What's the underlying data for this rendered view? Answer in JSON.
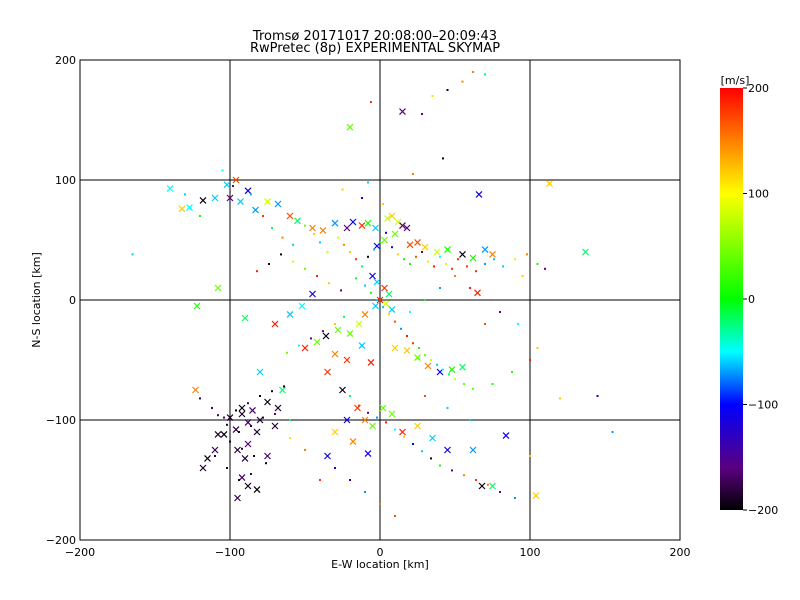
{
  "chart_data": {
    "type": "scatter",
    "title": "Tromsø 20171017 20:08:00–20:09:43",
    "subtitle": "RwPretec (8p) EXPERIMENTAL SKYMAP",
    "xlabel": "E-W location [km]",
    "ylabel": "N-S location [km]",
    "xlim": [
      -200,
      200
    ],
    "ylim": [
      -200,
      200
    ],
    "xticks": [
      "−200",
      "−100",
      "0",
      "100",
      "200"
    ],
    "yticks": [
      "−200",
      "−100",
      "0",
      "100",
      "200"
    ],
    "grid_lines": [
      -100,
      0,
      100
    ],
    "colorbar": {
      "unit": "[m/s]",
      "range": [
        -200,
        200
      ],
      "ticks": [
        "200",
        "100",
        "0",
        "−100",
        "−200"
      ]
    },
    "series": [
      {
        "marker": "x",
        "points": [
          [
            -140,
            93
          ],
          [
            -132,
            76
          ],
          [
            -127,
            77
          ],
          [
            -118,
            83
          ],
          [
            -110,
            85
          ],
          [
            -102,
            96
          ],
          [
            -96,
            100
          ],
          [
            -100,
            85
          ],
          [
            -93,
            82
          ],
          [
            -88,
            91
          ],
          [
            -83,
            75
          ],
          [
            -75,
            82
          ],
          [
            -68,
            80
          ],
          [
            -60,
            70
          ],
          [
            -55,
            66
          ],
          [
            -45,
            60
          ],
          [
            -38,
            58
          ],
          [
            -30,
            64
          ],
          [
            -22,
            60
          ],
          [
            -18,
            65
          ],
          [
            -12,
            62
          ],
          [
            -8,
            64
          ],
          [
            -3,
            60
          ],
          [
            5,
            68
          ],
          [
            8,
            70
          ],
          [
            12,
            65
          ],
          [
            15,
            62
          ],
          [
            18,
            60
          ],
          [
            10,
            55
          ],
          [
            3,
            50
          ],
          [
            -2,
            45
          ],
          [
            20,
            46
          ],
          [
            25,
            48
          ],
          [
            30,
            44
          ],
          [
            38,
            40
          ],
          [
            45,
            42
          ],
          [
            55,
            38
          ],
          [
            62,
            35
          ],
          [
            70,
            42
          ],
          [
            75,
            38
          ],
          [
            -20,
            144
          ],
          [
            15,
            157
          ],
          [
            66,
            88
          ],
          [
            113,
            97
          ],
          [
            137,
            40
          ],
          [
            -5,
            20
          ],
          [
            -2,
            15
          ],
          [
            3,
            10
          ],
          [
            6,
            5
          ],
          [
            0,
            0
          ],
          [
            -3,
            -5
          ],
          [
            4,
            -3
          ],
          [
            8,
            -8
          ],
          [
            -10,
            -12
          ],
          [
            -14,
            -20
          ],
          [
            -20,
            -28
          ],
          [
            -28,
            -25
          ],
          [
            -36,
            -30
          ],
          [
            -42,
            -35
          ],
          [
            -50,
            -40
          ],
          [
            -30,
            -45
          ],
          [
            -22,
            -50
          ],
          [
            -12,
            -38
          ],
          [
            -6,
            -52
          ],
          [
            10,
            -40
          ],
          [
            18,
            -42
          ],
          [
            25,
            -48
          ],
          [
            32,
            -55
          ],
          [
            40,
            -60
          ],
          [
            48,
            -58
          ],
          [
            55,
            -56
          ],
          [
            -45,
            5
          ],
          [
            -52,
            -5
          ],
          [
            -60,
            -12
          ],
          [
            -70,
            -20
          ],
          [
            -90,
            -15
          ],
          [
            -108,
            10
          ],
          [
            -122,
            -5
          ],
          [
            -92,
            -95
          ],
          [
            -88,
            -102
          ],
          [
            -96,
            -108
          ],
          [
            -104,
            -112
          ],
          [
            -85,
            -92
          ],
          [
            -80,
            -100
          ],
          [
            -92,
            -90
          ],
          [
            -100,
            -98
          ],
          [
            -88,
            -120
          ],
          [
            -95,
            -125
          ],
          [
            -82,
            -110
          ],
          [
            -110,
            -125
          ],
          [
            -115,
            -132
          ],
          [
            -118,
            -140
          ],
          [
            -92,
            -148
          ],
          [
            -88,
            -155
          ],
          [
            -82,
            -158
          ],
          [
            -95,
            -165
          ],
          [
            -75,
            -130
          ],
          [
            -70,
            -105
          ],
          [
            -68,
            -90
          ],
          [
            -75,
            -85
          ],
          [
            -65,
            -75
          ],
          [
            -80,
            -60
          ],
          [
            -35,
            -60
          ],
          [
            -25,
            -75
          ],
          [
            -15,
            -90
          ],
          [
            -10,
            -100
          ],
          [
            -5,
            -105
          ],
          [
            -22,
            -100
          ],
          [
            -30,
            -110
          ],
          [
            -35,
            -130
          ],
          [
            -18,
            -118
          ],
          [
            -8,
            -128
          ],
          [
            2,
            -90
          ],
          [
            8,
            -95
          ],
          [
            15,
            -110
          ],
          [
            25,
            -105
          ],
          [
            35,
            -115
          ],
          [
            45,
            -125
          ],
          [
            62,
            -125
          ],
          [
            68,
            -155
          ],
          [
            75,
            -155
          ],
          [
            84,
            -113
          ],
          [
            104,
            -163
          ],
          [
            65,
            6
          ],
          [
            -123,
            -75
          ],
          [
            -90,
            -132
          ],
          [
            -108,
            -112
          ]
        ]
      },
      {
        "marker": "dot",
        "points": [
          [
            -165,
            38
          ],
          [
            -130,
            88
          ],
          [
            -120,
            70
          ],
          [
            -105,
            108
          ],
          [
            -98,
            95
          ],
          [
            -86,
            88
          ],
          [
            -78,
            70
          ],
          [
            -72,
            60
          ],
          [
            -65,
            52
          ],
          [
            -58,
            46
          ],
          [
            -50,
            62
          ],
          [
            -44,
            55
          ],
          [
            -40,
            48
          ],
          [
            -35,
            40
          ],
          [
            -28,
            52
          ],
          [
            -24,
            46
          ],
          [
            -20,
            40
          ],
          [
            -16,
            34
          ],
          [
            -12,
            28
          ],
          [
            -8,
            36
          ],
          [
            -4,
            42
          ],
          [
            0,
            48
          ],
          [
            4,
            56
          ],
          [
            8,
            44
          ],
          [
            12,
            38
          ],
          [
            16,
            34
          ],
          [
            20,
            30
          ],
          [
            24,
            36
          ],
          [
            28,
            40
          ],
          [
            32,
            32
          ],
          [
            36,
            28
          ],
          [
            40,
            36
          ],
          [
            44,
            30
          ],
          [
            48,
            26
          ],
          [
            52,
            34
          ],
          [
            58,
            28
          ],
          [
            64,
            24
          ],
          [
            70,
            30
          ],
          [
            76,
            34
          ],
          [
            82,
            28
          ],
          [
            90,
            34
          ],
          [
            98,
            38
          ],
          [
            105,
            30
          ],
          [
            110,
            26
          ],
          [
            95,
            20
          ],
          [
            -6,
            165
          ],
          [
            28,
            155
          ],
          [
            35,
            170
          ],
          [
            45,
            175
          ],
          [
            55,
            182
          ],
          [
            62,
            190
          ],
          [
            70,
            188
          ],
          [
            42,
            118
          ],
          [
            22,
            105
          ],
          [
            -8,
            98
          ],
          [
            -25,
            92
          ],
          [
            -12,
            85
          ],
          [
            2,
            80
          ],
          [
            -16,
            18
          ],
          [
            -10,
            12
          ],
          [
            -6,
            6
          ],
          [
            -2,
            0
          ],
          [
            2,
            -6
          ],
          [
            6,
            -12
          ],
          [
            10,
            -18
          ],
          [
            14,
            -24
          ],
          [
            18,
            -30
          ],
          [
            22,
            -36
          ],
          [
            26,
            -40
          ],
          [
            30,
            -46
          ],
          [
            34,
            -50
          ],
          [
            38,
            -54
          ],
          [
            42,
            -58
          ],
          [
            46,
            -62
          ],
          [
            50,
            -66
          ],
          [
            56,
            -70
          ],
          [
            62,
            -74
          ],
          [
            -24,
            -14
          ],
          [
            -30,
            -20
          ],
          [
            -38,
            -26
          ],
          [
            -46,
            -32
          ],
          [
            -54,
            -38
          ],
          [
            -62,
            -44
          ],
          [
            -26,
            8
          ],
          [
            -34,
            14
          ],
          [
            -42,
            20
          ],
          [
            -50,
            26
          ],
          [
            -58,
            32
          ],
          [
            -66,
            38
          ],
          [
            -74,
            30
          ],
          [
            -82,
            24
          ],
          [
            -120,
            -82
          ],
          [
            -112,
            -90
          ],
          [
            -104,
            -98
          ],
          [
            -96,
            -92
          ],
          [
            -88,
            -86
          ],
          [
            -80,
            -80
          ],
          [
            -72,
            -76
          ],
          [
            -64,
            -72
          ],
          [
            -100,
            -118
          ],
          [
            -92,
            -124
          ],
          [
            -84,
            -130
          ],
          [
            -76,
            -136
          ],
          [
            -86,
            -145
          ],
          [
            -94,
            -150
          ],
          [
            -102,
            -140
          ],
          [
            -110,
            -130
          ],
          [
            -20,
            -80
          ],
          [
            -14,
            -88
          ],
          [
            -8,
            -94
          ],
          [
            -2,
            -98
          ],
          [
            4,
            -102
          ],
          [
            10,
            -108
          ],
          [
            16,
            -114
          ],
          [
            22,
            -120
          ],
          [
            28,
            -126
          ],
          [
            34,
            -132
          ],
          [
            40,
            -138
          ],
          [
            48,
            -142
          ],
          [
            56,
            -146
          ],
          [
            64,
            -150
          ],
          [
            72,
            -154
          ],
          [
            80,
            -160
          ],
          [
            90,
            -165
          ],
          [
            100,
            -130
          ],
          [
            120,
            -82
          ],
          [
            145,
            -80
          ],
          [
            155,
            -110
          ],
          [
            60,
            -100
          ],
          [
            45,
            -90
          ],
          [
            30,
            -80
          ],
          [
            -30,
            -140
          ],
          [
            -20,
            -150
          ],
          [
            -10,
            -160
          ],
          [
            0,
            -170
          ],
          [
            10,
            -180
          ],
          [
            -40,
            -150
          ],
          [
            -50,
            -125
          ],
          [
            -60,
            -115
          ],
          [
            75,
            -70
          ],
          [
            88,
            -60
          ],
          [
            100,
            -50
          ],
          [
            105,
            -40
          ],
          [
            92,
            -20
          ],
          [
            80,
            -10
          ],
          [
            70,
            -20
          ],
          [
            60,
            10
          ],
          [
            50,
            20
          ],
          [
            40,
            10
          ],
          [
            30,
            0
          ],
          [
            20,
            -10
          ],
          [
            -60,
            -100
          ],
          [
            -70,
            -95
          ],
          [
            -78,
            -98
          ],
          [
            -86,
            -105
          ],
          [
            -94,
            -110
          ],
          [
            -102,
            -104
          ],
          [
            -108,
            -96
          ]
        ]
      }
    ]
  }
}
